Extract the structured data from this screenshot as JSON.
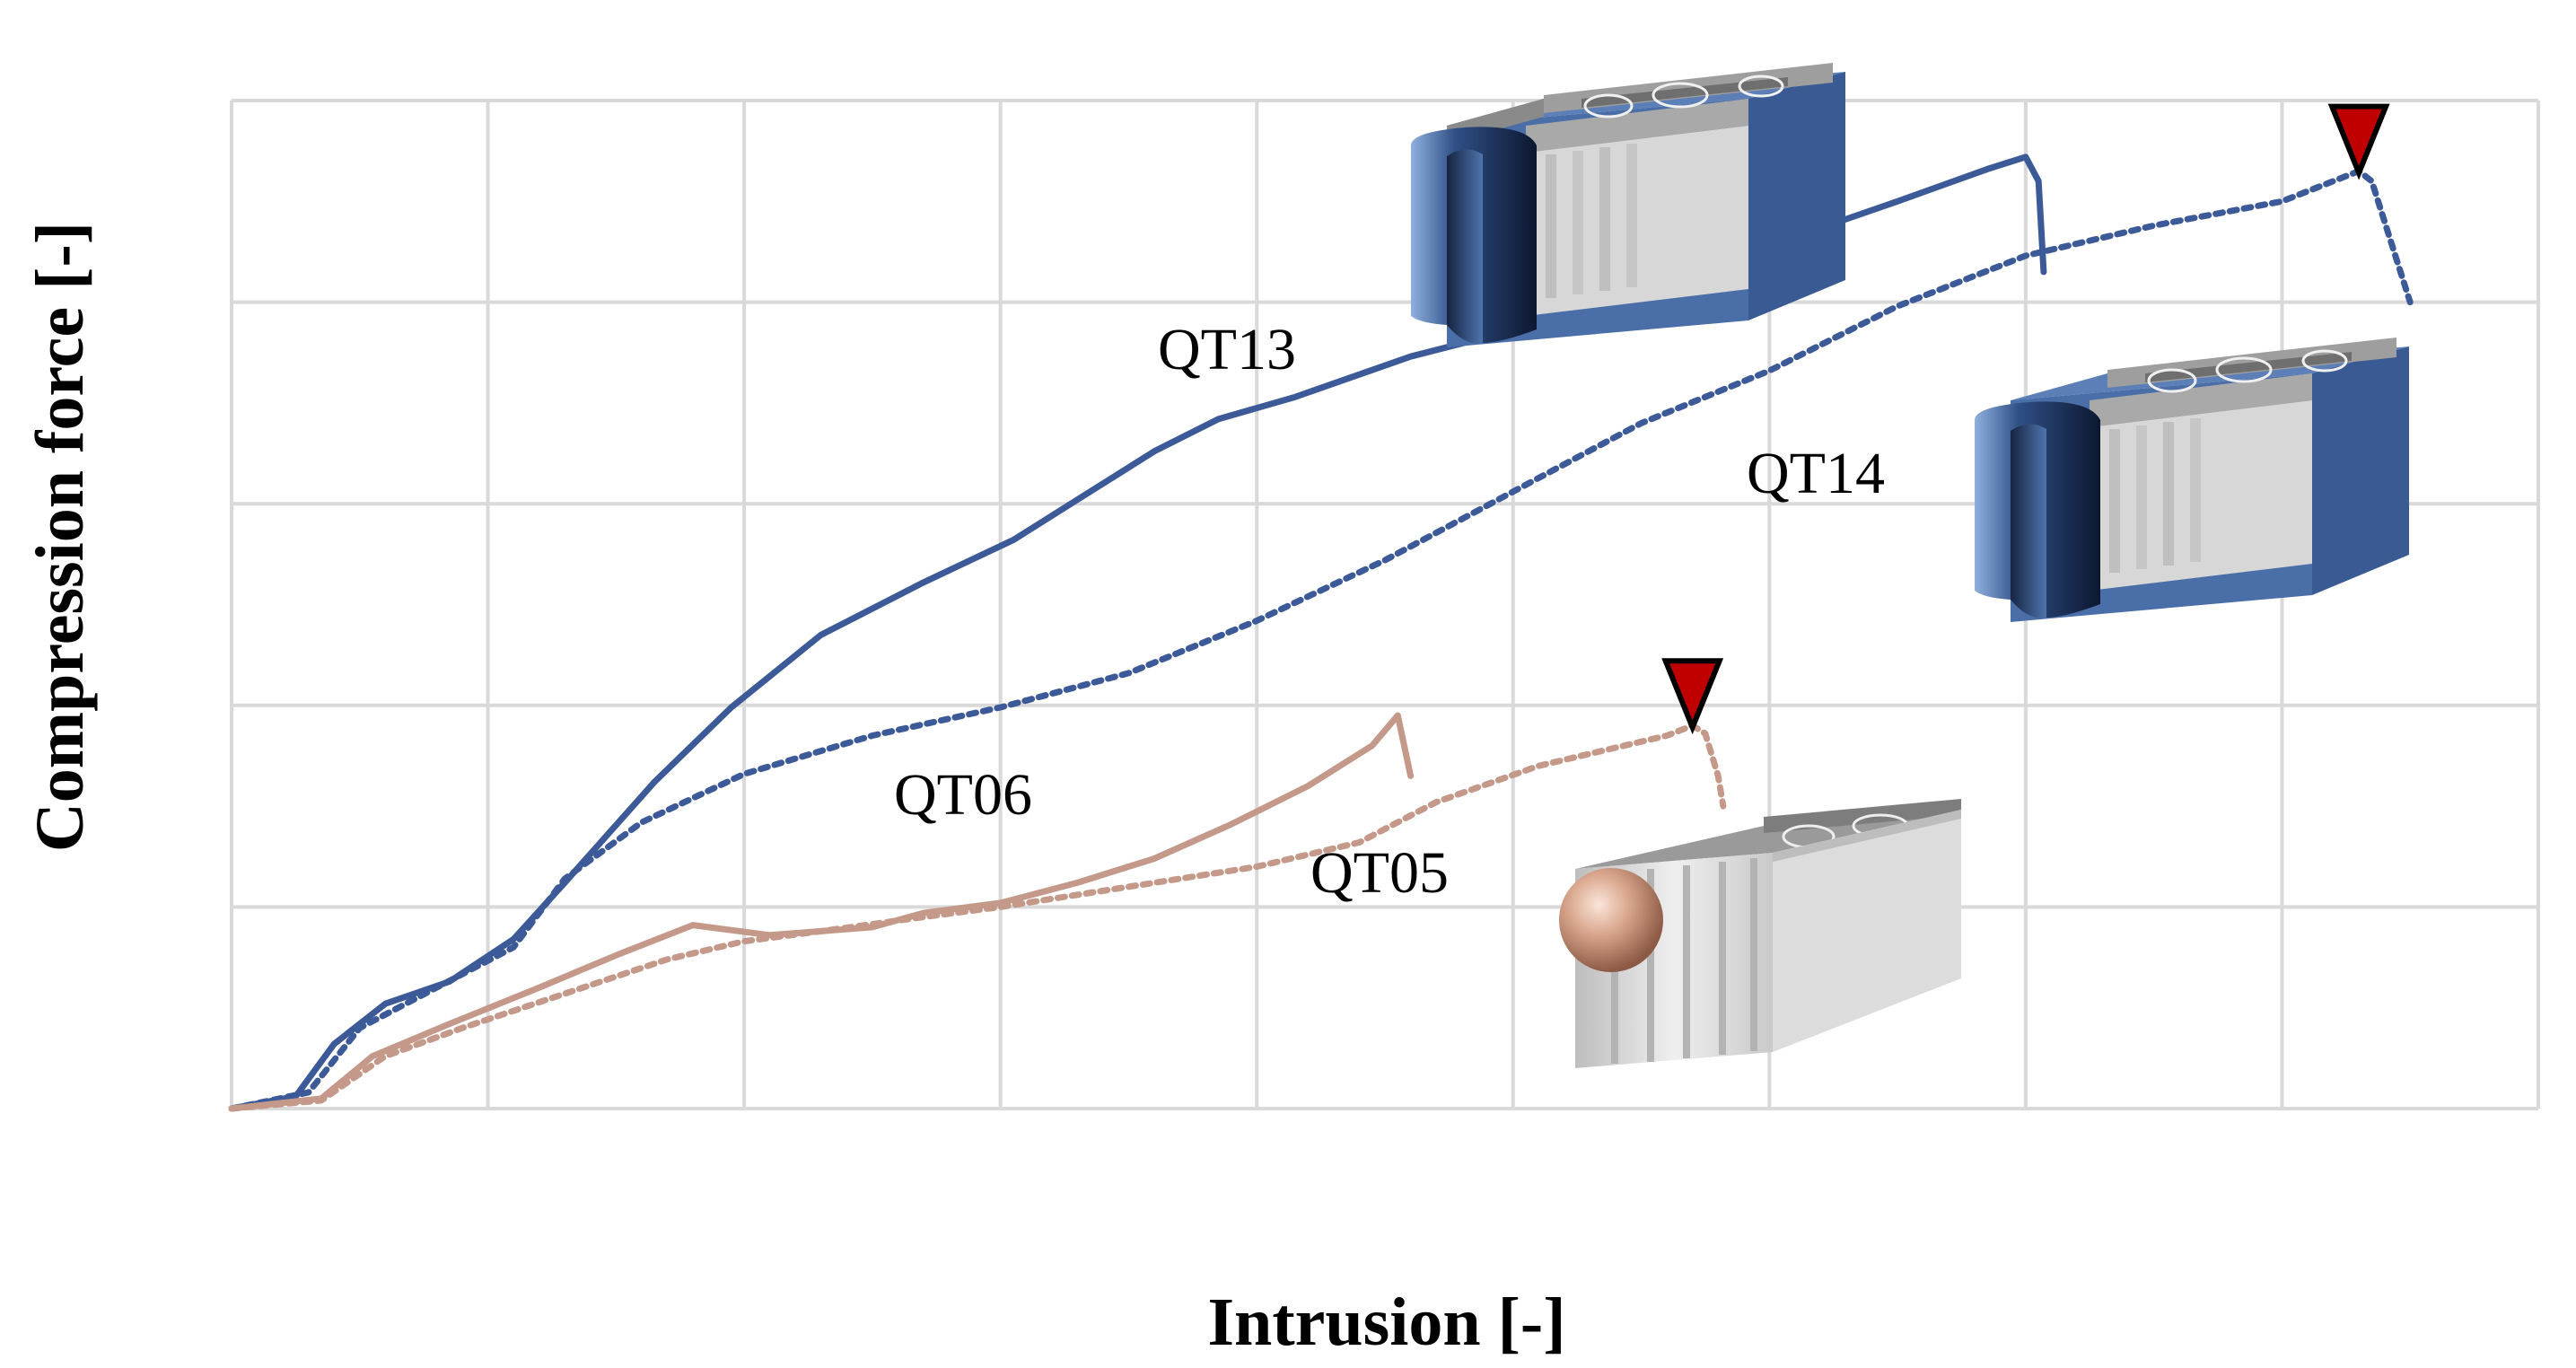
{
  "chart_data": {
    "type": "line",
    "title": "",
    "xlabel": "Intrusion [-]",
    "ylabel": "Compression force [-]",
    "xlim": [
      0,
      9
    ],
    "ylim": [
      0,
      5
    ],
    "x_ticks_labeled": false,
    "y_ticks_labeled": false,
    "grid": true,
    "legend": "none (series labeled directly on the curves)",
    "series": [
      {
        "name": "QT13",
        "color": "#3d5a98",
        "dashed": false,
        "end_marker": false,
        "points": [
          [
            0,
            0
          ],
          [
            0.25,
            0.06
          ],
          [
            0.4,
            0.32
          ],
          [
            0.6,
            0.52
          ],
          [
            0.85,
            0.63
          ],
          [
            1.1,
            0.84
          ],
          [
            1.3,
            1.12
          ],
          [
            1.65,
            1.62
          ],
          [
            1.95,
            1.99
          ],
          [
            2.3,
            2.35
          ],
          [
            2.7,
            2.61
          ],
          [
            3.05,
            2.82
          ],
          [
            3.3,
            3.02
          ],
          [
            3.6,
            3.26
          ],
          [
            3.85,
            3.42
          ],
          [
            4.15,
            3.53
          ],
          [
            4.6,
            3.73
          ],
          [
            5.0,
            3.86
          ],
          [
            5.5,
            4.06
          ],
          [
            6.0,
            4.28
          ],
          [
            6.5,
            4.5
          ],
          [
            6.85,
            4.66
          ],
          [
            7.0,
            4.72
          ],
          [
            7.05,
            4.6
          ],
          [
            7.07,
            4.15
          ]
        ]
      },
      {
        "name": "QT14",
        "color": "#3d5a98",
        "dashed": true,
        "end_marker": true,
        "points": [
          [
            0,
            0
          ],
          [
            0.3,
            0.08
          ],
          [
            0.5,
            0.4
          ],
          [
            0.8,
            0.6
          ],
          [
            1.1,
            0.8
          ],
          [
            1.3,
            1.14
          ],
          [
            1.6,
            1.42
          ],
          [
            2.0,
            1.66
          ],
          [
            2.5,
            1.85
          ],
          [
            3.0,
            1.99
          ],
          [
            3.5,
            2.16
          ],
          [
            4.0,
            2.42
          ],
          [
            4.5,
            2.72
          ],
          [
            5.0,
            3.06
          ],
          [
            5.5,
            3.4
          ],
          [
            6.0,
            3.66
          ],
          [
            6.5,
            3.98
          ],
          [
            7.0,
            4.23
          ],
          [
            7.5,
            4.38
          ],
          [
            8.0,
            4.5
          ],
          [
            8.3,
            4.65
          ],
          [
            8.35,
            4.6
          ],
          [
            8.45,
            4.2
          ],
          [
            8.5,
            4.0
          ]
        ]
      },
      {
        "name": "QT06",
        "color": "#c4998a",
        "dashed": false,
        "end_marker": false,
        "points": [
          [
            0,
            0
          ],
          [
            0.35,
            0.05
          ],
          [
            0.55,
            0.26
          ],
          [
            0.85,
            0.42
          ],
          [
            1.2,
            0.6
          ],
          [
            1.5,
            0.76
          ],
          [
            1.8,
            0.91
          ],
          [
            2.1,
            0.86
          ],
          [
            2.3,
            0.88
          ],
          [
            2.5,
            0.9
          ],
          [
            2.7,
            0.97
          ],
          [
            3.0,
            1.02
          ],
          [
            3.3,
            1.12
          ],
          [
            3.6,
            1.24
          ],
          [
            3.9,
            1.41
          ],
          [
            4.2,
            1.6
          ],
          [
            4.45,
            1.8
          ],
          [
            4.55,
            1.95
          ],
          [
            4.6,
            1.65
          ]
        ]
      },
      {
        "name": "QT05",
        "color": "#c4998a",
        "dashed": true,
        "end_marker": true,
        "points": [
          [
            0,
            0
          ],
          [
            0.35,
            0.04
          ],
          [
            0.6,
            0.26
          ],
          [
            0.9,
            0.4
          ],
          [
            1.3,
            0.57
          ],
          [
            1.7,
            0.74
          ],
          [
            2.0,
            0.83
          ],
          [
            2.3,
            0.88
          ],
          [
            2.7,
            0.95
          ],
          [
            3.0,
            1.0
          ],
          [
            3.5,
            1.1
          ],
          [
            4.0,
            1.2
          ],
          [
            4.4,
            1.32
          ],
          [
            4.7,
            1.52
          ],
          [
            5.1,
            1.7
          ],
          [
            5.5,
            1.82
          ],
          [
            5.6,
            1.85
          ],
          [
            5.7,
            1.9
          ],
          [
            5.75,
            1.86
          ],
          [
            5.8,
            1.65
          ],
          [
            5.82,
            1.5
          ]
        ]
      }
    ]
  },
  "labels": {
    "qt13": "QT13",
    "qt14": "QT14",
    "qt06": "QT06",
    "qt05": "QT05"
  },
  "colors": {
    "grid": "#d9d9d9",
    "blue_series": "#3d5a98",
    "copper_series": "#c4998a",
    "failure_marker": "#c00000",
    "module_blue": "#4a6ea8",
    "module_grey": "#d0d0d0"
  },
  "icons": [
    "failure-marker-icon",
    "battery-module-with-cylindrical-impactor-icon",
    "battery-module-with-spherical-impactor-icon"
  ]
}
